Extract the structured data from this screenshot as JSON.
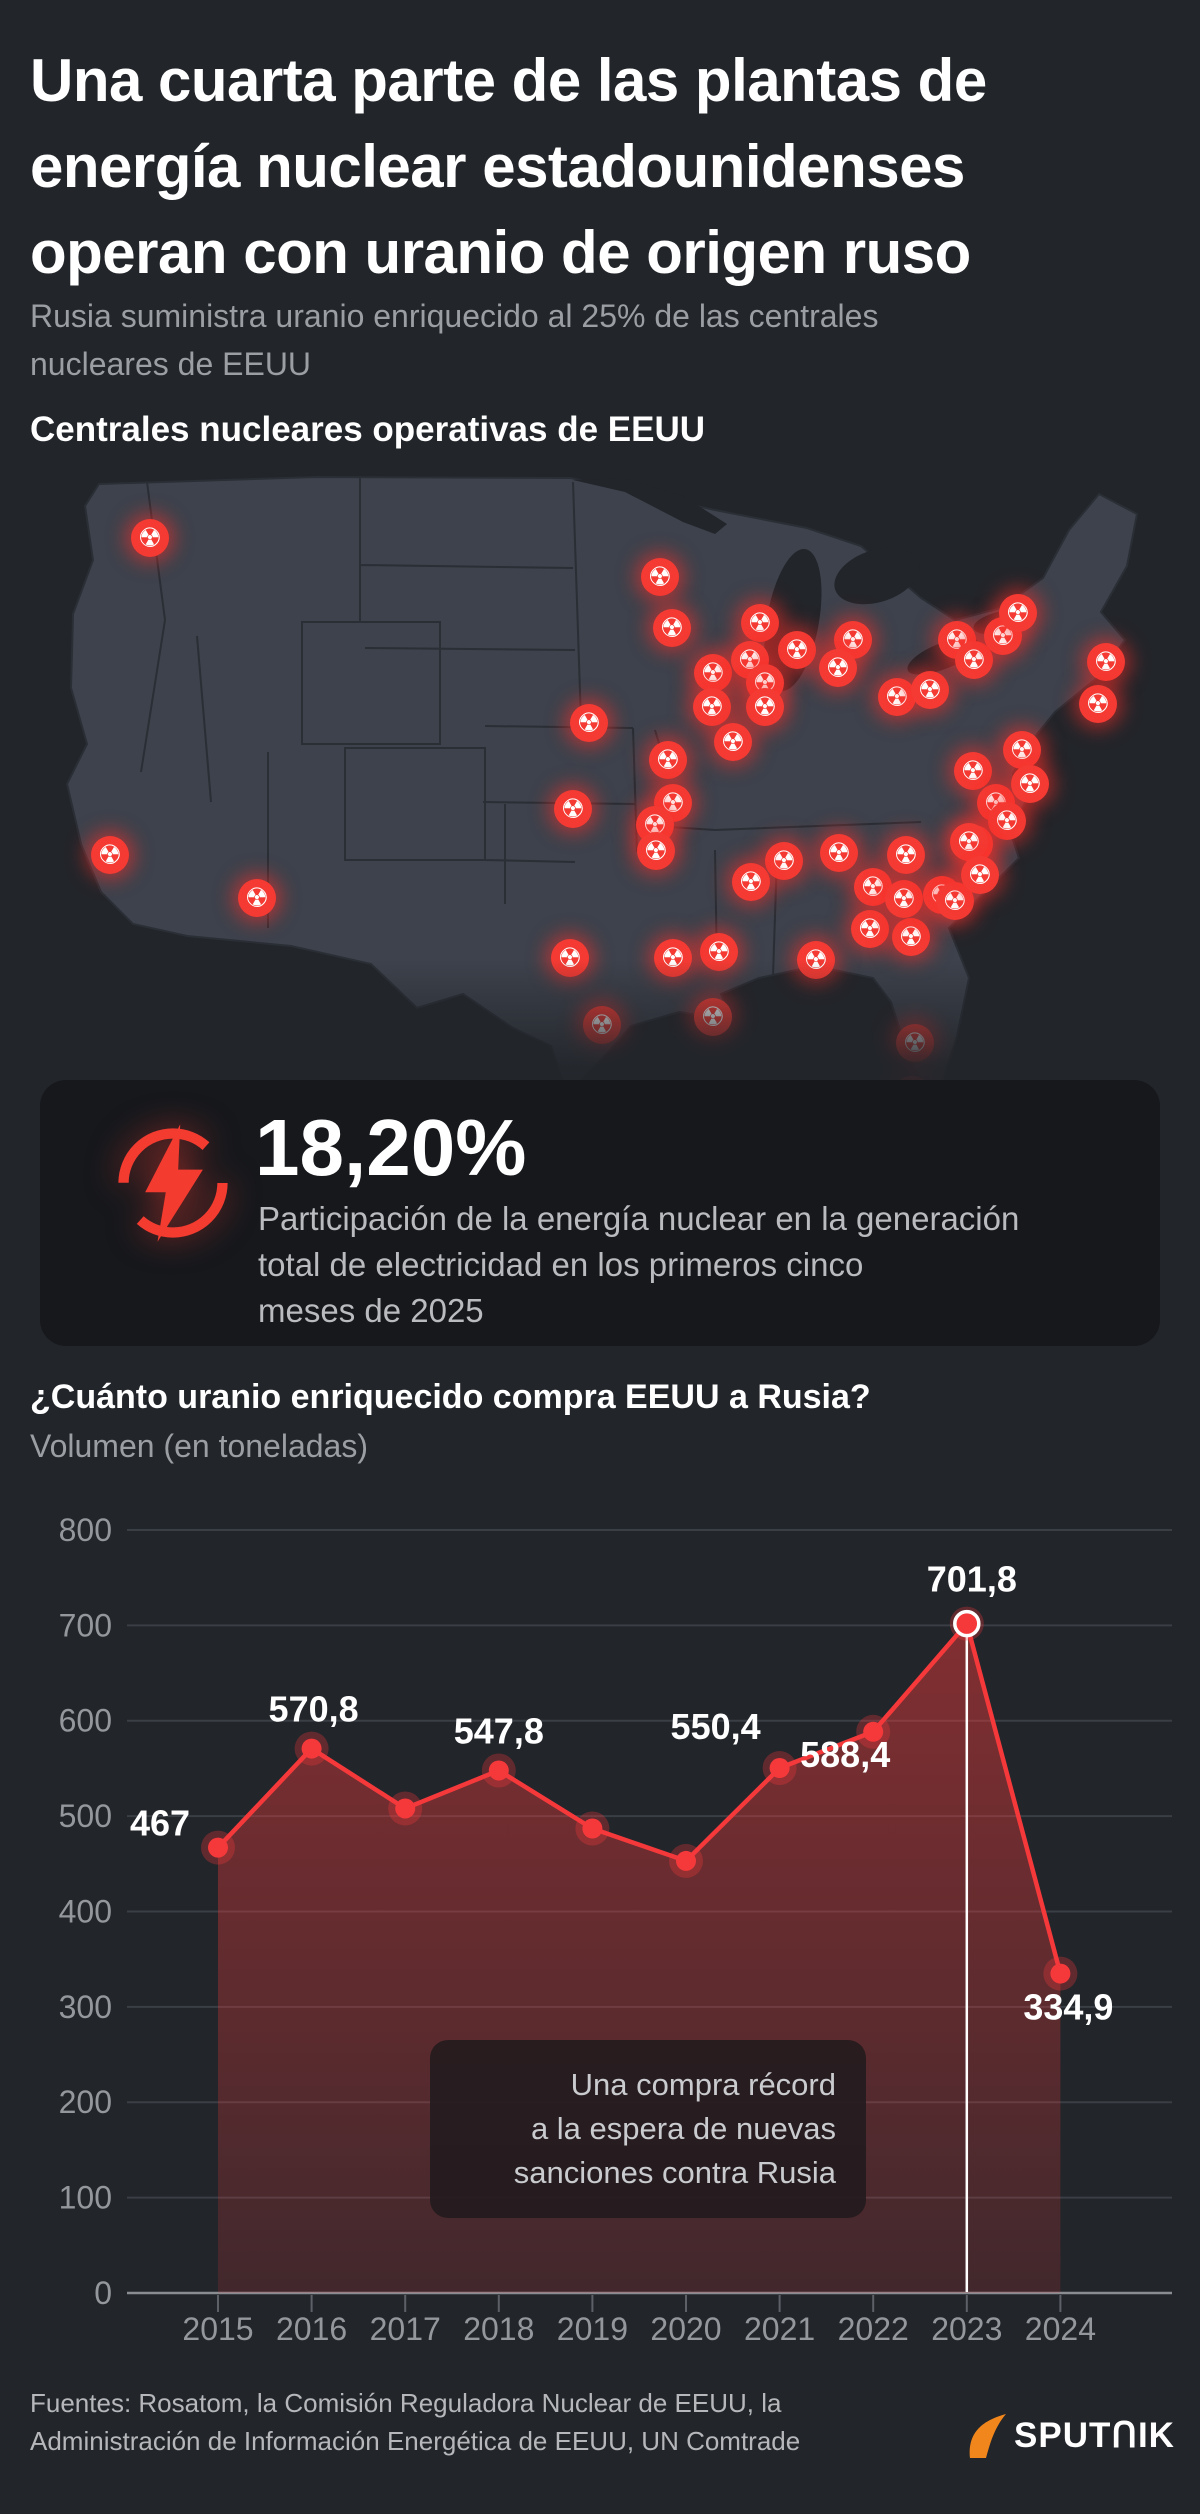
{
  "page": {
    "background": "#22252a",
    "accent_red": "#f43b3b"
  },
  "header": {
    "title_lines": [
      "Una cuarta parte de las plantas de",
      "energía nuclear estadounidenses",
      "operan con uranio de origen ruso"
    ],
    "subtitle_lines": [
      "Rusia suministra uranio enriquecido al 25% de las centrales",
      "nucleares de EEUU"
    ]
  },
  "map_section": {
    "heading": "Centrales nucleares operativas de EEUU",
    "marker_icon": "radiation-trefoil-icon",
    "marker_glyph": "☢",
    "marker_color": "#f43a33",
    "land_color": "#3d424c",
    "markers": [
      [
        135,
        68
      ],
      [
        95,
        385
      ],
      [
        242,
        428
      ],
      [
        574,
        253
      ],
      [
        558,
        339
      ],
      [
        645,
        107
      ],
      [
        657,
        158
      ],
      [
        745,
        153
      ],
      [
        782,
        180
      ],
      [
        653,
        290
      ],
      [
        658,
        333
      ],
      [
        640,
        355
      ],
      [
        698,
        203
      ],
      [
        735,
        190
      ],
      [
        750,
        213
      ],
      [
        697,
        237
      ],
      [
        750,
        237
      ],
      [
        718,
        272
      ],
      [
        838,
        170
      ],
      [
        823,
        198
      ],
      [
        882,
        227
      ],
      [
        915,
        220
      ],
      [
        942,
        170
      ],
      [
        959,
        190
      ],
      [
        988,
        166
      ],
      [
        1003,
        143
      ],
      [
        1091,
        192
      ],
      [
        1083,
        234
      ],
      [
        958,
        301
      ],
      [
        981,
        333
      ],
      [
        992,
        351
      ],
      [
        959,
        374
      ],
      [
        1007,
        280
      ],
      [
        1015,
        314
      ],
      [
        641,
        381
      ],
      [
        704,
        482
      ],
      [
        658,
        488
      ],
      [
        698,
        547
      ],
      [
        555,
        488
      ],
      [
        587,
        555
      ],
      [
        769,
        391
      ],
      [
        824,
        383
      ],
      [
        736,
        412
      ],
      [
        801,
        490
      ],
      [
        858,
        417
      ],
      [
        855,
        459
      ],
      [
        896,
        467
      ],
      [
        889,
        429
      ],
      [
        927,
        425
      ],
      [
        940,
        431
      ],
      [
        891,
        385
      ],
      [
        954,
        372
      ],
      [
        965,
        405
      ],
      [
        900,
        573
      ],
      [
        897,
        625
      ]
    ]
  },
  "stat_card": {
    "icon": "lightning-bolt-icon",
    "value": "18,20%",
    "description_lines": [
      "Participación de la energía nuclear en la generación",
      "total de electricidad en los primeros cinco",
      "meses de 2025"
    ]
  },
  "chart_section": {
    "title": "¿Cuánto uranio enriquecido compra EEUU a Rusia?",
    "subtitle": "Volumen (en toneladas)",
    "annotation": {
      "lines": [
        "Una compra récord",
        "a la espera de nuevas",
        "sanciones contra Rusia"
      ]
    }
  },
  "chart_data": {
    "type": "area",
    "title": "¿Cuánto uranio enriquecido compra EEUU a Rusia?",
    "ylabel": "Volumen (en toneladas)",
    "x": [
      2015,
      2016,
      2017,
      2018,
      2019,
      2020,
      2021,
      2022,
      2023,
      2024
    ],
    "values": [
      467,
      570.8,
      508,
      547.8,
      487,
      453,
      550.4,
      588.4,
      701.8,
      334.9
    ],
    "point_labels": [
      "467",
      "570,8",
      null,
      "547,8",
      null,
      null,
      "550,4",
      "588,4",
      "701,8",
      "334,9"
    ],
    "ylim": [
      0,
      800
    ],
    "ytick_step": 100,
    "grid": true,
    "legend": "none",
    "line_color": "#f5393b",
    "fill_color": "#f33a3a",
    "highlight_year": 2023,
    "highlight_style": "white-ring-and-vertical-line",
    "annotation": "Una compra récord a la espera de nuevas sanciones contra Rusia"
  },
  "footer": {
    "sources_lines": [
      "Fuentes: Rosatom, la Comisión Reguladora Nuclear de EEUU, la",
      "Administración de Información Energética de EEUU, UN Comtrade"
    ],
    "logo_text": "SPUTNIK",
    "logo_display": "SPUTᑎIK",
    "logo_arrow_color": "#f0861c"
  }
}
